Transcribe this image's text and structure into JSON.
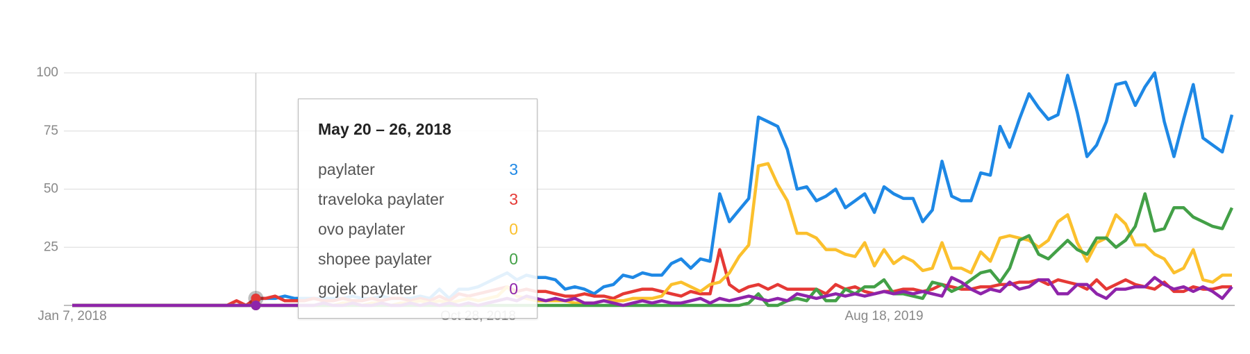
{
  "chart_data": {
    "type": "line",
    "categories": [
      "Jan 7, 2018",
      null,
      null,
      null,
      null,
      null,
      null,
      null,
      null,
      null,
      null,
      null,
      null,
      null,
      null,
      null,
      null,
      null,
      null,
      null,
      null,
      null,
      null,
      null,
      null,
      null,
      null,
      null,
      null,
      null,
      null,
      null,
      null,
      null,
      null,
      null,
      null,
      null,
      null,
      null,
      null,
      null,
      "Oct 28, 2018",
      null,
      null,
      null,
      null,
      null,
      null,
      null,
      null,
      null,
      null,
      null,
      null,
      null,
      null,
      null,
      null,
      null,
      null,
      null,
      null,
      null,
      null,
      null,
      null,
      null,
      null,
      null,
      null,
      null,
      null,
      null,
      null,
      null,
      null,
      null,
      null,
      null,
      null,
      null,
      null,
      null,
      "Aug 18, 2019",
      null,
      null,
      null,
      null,
      null,
      null,
      null,
      null,
      null,
      null,
      null,
      null,
      null,
      null,
      null,
      null,
      null,
      null,
      null,
      null,
      null,
      null,
      null,
      null,
      null,
      null,
      null,
      null,
      null,
      null,
      null,
      null,
      null,
      null,
      null,
      null
    ],
    "ylim": [
      0,
      100
    ],
    "yticks": [
      25,
      50,
      75,
      100
    ],
    "grid": true,
    "hover": {
      "label": "May 20 – 26, 2018"
    },
    "series": [
      {
        "name": "paylater",
        "color": "#1e88e5",
        "values": [
          0,
          0,
          0,
          0,
          0,
          0,
          0,
          0,
          0,
          0,
          0,
          0,
          0,
          0,
          0,
          0,
          0,
          0,
          0,
          3,
          3,
          3,
          4,
          3,
          3,
          3,
          3,
          3,
          3,
          4,
          3,
          3,
          4,
          3,
          3,
          3,
          4,
          3,
          7,
          3,
          7,
          7,
          8,
          10,
          12,
          14,
          11,
          13,
          12,
          12,
          11,
          7,
          8,
          7,
          5,
          8,
          9,
          13,
          12,
          14,
          13,
          13,
          18,
          20,
          16,
          20,
          19,
          48,
          36,
          41,
          46,
          81,
          79,
          77,
          67,
          50,
          51,
          45,
          47,
          50,
          42,
          45,
          48,
          40,
          51,
          48,
          46,
          46,
          36,
          41,
          62,
          47,
          45,
          45,
          57,
          56,
          77,
          68,
          80,
          91,
          85,
          80,
          82,
          99,
          83,
          64,
          69,
          79,
          95,
          96,
          86,
          94,
          100,
          79,
          64,
          80,
          95,
          72,
          69,
          66,
          82
        ]
      },
      {
        "name": "traveloka paylater",
        "color": "#e53935",
        "values": [
          0,
          0,
          0,
          0,
          0,
          0,
          0,
          0,
          0,
          0,
          0,
          0,
          0,
          0,
          0,
          0,
          0,
          2,
          0,
          3,
          3,
          4,
          2,
          2,
          2,
          3,
          2,
          2,
          3,
          2,
          2,
          3,
          2,
          3,
          3,
          2,
          3,
          2,
          4,
          2,
          5,
          4,
          5,
          6,
          7,
          8,
          6,
          7,
          6,
          6,
          5,
          4,
          4,
          5,
          4,
          4,
          3,
          5,
          6,
          7,
          7,
          6,
          5,
          4,
          6,
          5,
          5,
          24,
          9,
          6,
          8,
          9,
          7,
          9,
          7,
          7,
          7,
          7,
          5,
          9,
          7,
          8,
          6,
          5,
          6,
          6,
          7,
          7,
          6,
          7,
          9,
          8,
          7,
          7,
          8,
          8,
          9,
          9,
          10,
          10,
          11,
          9,
          11,
          10,
          9,
          7,
          11,
          7,
          9,
          11,
          9,
          8,
          7,
          10,
          6,
          6,
          8,
          7,
          7,
          8,
          8
        ]
      },
      {
        "name": "ovo paylater",
        "color": "#fbc02d",
        "values": [
          0,
          0,
          0,
          0,
          0,
          0,
          0,
          0,
          0,
          0,
          0,
          0,
          0,
          0,
          0,
          0,
          0,
          0,
          0,
          0,
          0,
          0,
          0,
          0,
          0,
          0,
          0,
          0,
          1,
          1,
          0,
          1,
          1,
          0,
          1,
          1,
          2,
          1,
          2,
          1,
          2,
          3,
          2,
          3,
          4,
          8,
          4,
          3,
          2,
          2,
          2,
          2,
          1,
          1,
          1,
          2,
          2,
          2,
          3,
          3,
          3,
          4,
          9,
          10,
          8,
          6,
          9,
          10,
          14,
          21,
          26,
          60,
          61,
          52,
          45,
          31,
          31,
          29,
          24,
          24,
          22,
          21,
          27,
          17,
          24,
          18,
          21,
          19,
          15,
          16,
          27,
          16,
          16,
          14,
          23,
          19,
          29,
          30,
          29,
          28,
          25,
          28,
          36,
          39,
          27,
          19,
          27,
          29,
          39,
          35,
          26,
          26,
          22,
          20,
          14,
          16,
          24,
          11,
          10,
          13,
          13
        ]
      },
      {
        "name": "shopee paylater",
        "color": "#43a047",
        "values": [
          0,
          0,
          0,
          0,
          0,
          0,
          0,
          0,
          0,
          0,
          0,
          0,
          0,
          0,
          0,
          0,
          0,
          0,
          0,
          0,
          0,
          0,
          0,
          0,
          0,
          0,
          0,
          0,
          0,
          0,
          0,
          0,
          0,
          0,
          0,
          0,
          0,
          0,
          0,
          0,
          0,
          0,
          0,
          0,
          0,
          0,
          0,
          0,
          0,
          0,
          0,
          0,
          0,
          0,
          0,
          0,
          0,
          0,
          0,
          0,
          0,
          0,
          0,
          0,
          0,
          0,
          0,
          0,
          0,
          0,
          1,
          5,
          0,
          0,
          2,
          3,
          2,
          7,
          2,
          2,
          7,
          5,
          8,
          8,
          11,
          5,
          5,
          4,
          3,
          10,
          9,
          6,
          8,
          11,
          14,
          15,
          10,
          16,
          28,
          30,
          22,
          20,
          24,
          28,
          24,
          22,
          29,
          29,
          25,
          28,
          34,
          48,
          32,
          33,
          42,
          42,
          38,
          36,
          34,
          33,
          42
        ]
      },
      {
        "name": "gojek paylater",
        "color": "#8e24aa",
        "values": [
          0,
          0,
          0,
          0,
          0,
          0,
          0,
          0,
          0,
          0,
          0,
          0,
          0,
          0,
          0,
          0,
          0,
          0,
          0,
          0,
          0,
          0,
          0,
          0,
          0,
          0,
          1,
          0,
          0,
          1,
          0,
          0,
          1,
          0,
          0,
          1,
          0,
          1,
          0,
          1,
          0,
          1,
          0,
          1,
          2,
          3,
          2,
          4,
          3,
          2,
          3,
          2,
          3,
          1,
          1,
          2,
          1,
          0,
          1,
          2,
          1,
          2,
          1,
          1,
          2,
          3,
          1,
          3,
          2,
          3,
          4,
          3,
          2,
          3,
          2,
          5,
          4,
          3,
          4,
          5,
          4,
          5,
          4,
          5,
          6,
          5,
          6,
          5,
          6,
          5,
          4,
          12,
          10,
          7,
          5,
          7,
          6,
          10,
          7,
          8,
          11,
          11,
          5,
          5,
          9,
          9,
          5,
          3,
          7,
          7,
          8,
          8,
          12,
          9,
          7,
          8,
          6,
          8,
          6,
          3,
          8
        ]
      }
    ]
  }
}
